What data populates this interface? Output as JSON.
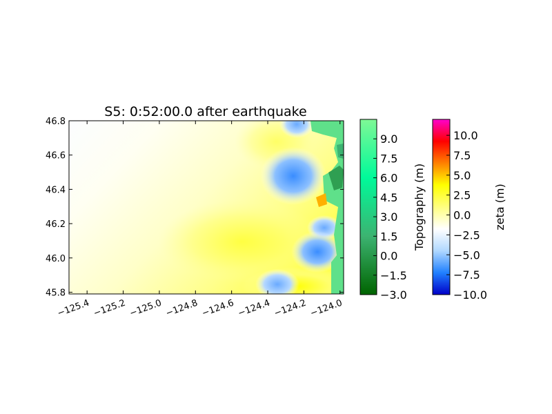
{
  "chart_data": {
    "type": "heatmap",
    "title": "S5: 0:52:00.0 after earthquake",
    "xlim": [
      -125.5,
      -123.98
    ],
    "ylim": [
      45.79,
      46.8
    ],
    "xticks": [
      -125.4,
      -125.2,
      -125.0,
      -124.8,
      -124.6,
      -124.4,
      -124.2,
      -124.0
    ],
    "xtick_labels": [
      "−125.4",
      "−125.2",
      "−125.0",
      "−124.8",
      "−124.6",
      "−124.4",
      "−124.2",
      "−124.0"
    ],
    "yticks": [
      45.8,
      46.0,
      46.2,
      46.4,
      46.6,
      46.8
    ],
    "ytick_labels": [
      "45.8",
      "46.0",
      "46.2",
      "46.4",
      "46.6",
      "46.8"
    ],
    "grid": false,
    "colorbars": [
      {
        "label": "Topography (m)",
        "range": [
          -3.0,
          10.5
        ],
        "ticks": [
          -3.0,
          -1.5,
          0.0,
          1.5,
          3.0,
          4.5,
          6.0,
          7.5,
          9.0
        ],
        "tick_labels": [
          "−3.0",
          "−1.5",
          "0.0",
          "1.5",
          "3.0",
          "4.5",
          "6.0",
          "7.5",
          "9.0"
        ],
        "colors": [
          "#006400",
          "#3cb371",
          "#00fa9a",
          "#7ff896"
        ]
      },
      {
        "label": "zeta (m)",
        "range": [
          -10.0,
          12.0
        ],
        "ticks": [
          -10.0,
          -7.5,
          -5.0,
          -2.5,
          0.0,
          2.5,
          5.0,
          7.5,
          10.0
        ],
        "tick_labels": [
          "−10.0",
          "−7.5",
          "−5.0",
          "−2.5",
          "0.0",
          "2.5",
          "5.0",
          "7.5",
          "10.0"
        ],
        "colors": [
          "#0000c8",
          "#2080ff",
          "#b0d8ff",
          "#ffffff",
          "#ffff80",
          "#ffff00",
          "#ff8000",
          "#ff0000",
          "#ff00cc"
        ]
      }
    ]
  }
}
